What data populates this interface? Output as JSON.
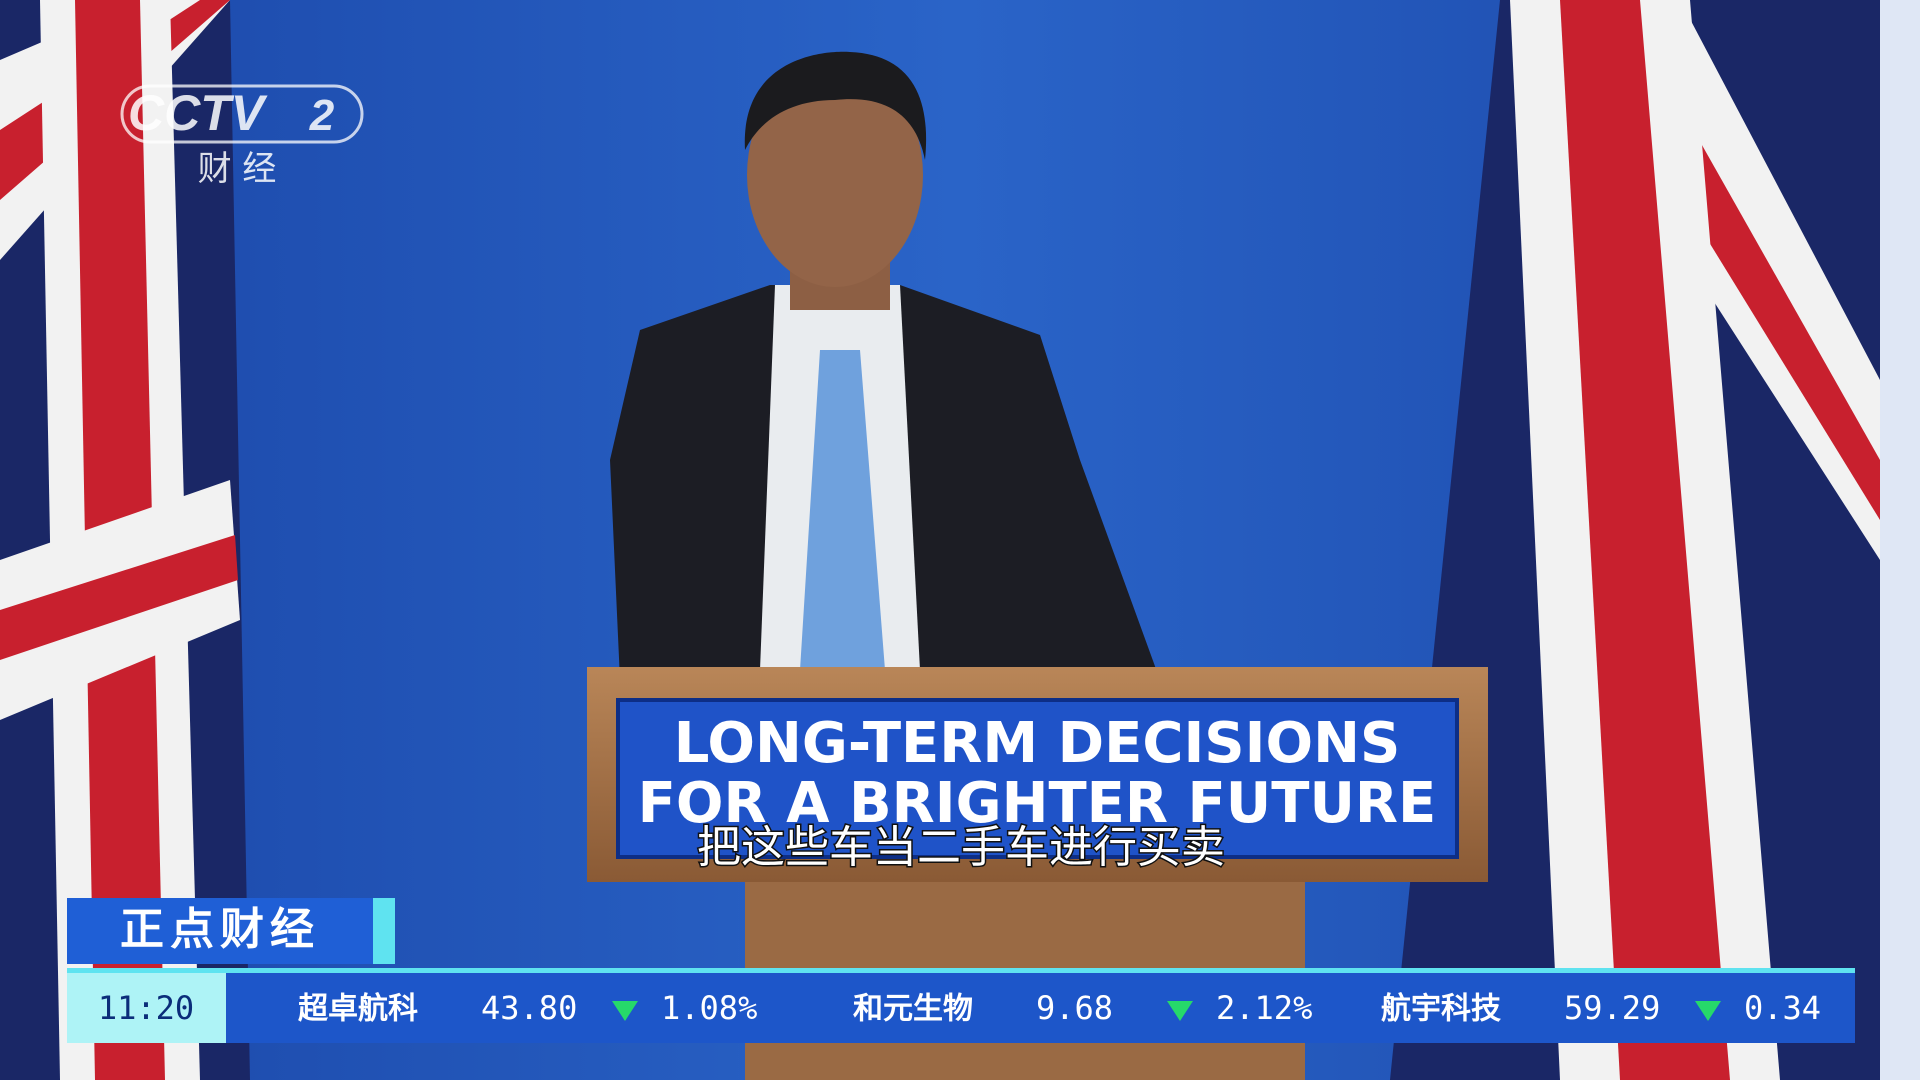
{
  "logo": {
    "brand": "CCTV",
    "channel": "2",
    "channel_name": "财 经"
  },
  "podium": {
    "line1": "LONG-TERM DECISIONS",
    "line2": "FOR A BRIGHTER FUTURE"
  },
  "subtitle": "把这些车当二手车进行买卖",
  "program": "正点财经",
  "ticker": {
    "time": "11:20",
    "items": [
      {
        "name": "超卓航科",
        "price": "43.80",
        "change": "1.08%"
      },
      {
        "name": "和元生物",
        "price": "9.68",
        "change": "2.12%"
      },
      {
        "name": "航宇科技",
        "price": "59.29",
        "change": "0.34"
      }
    ]
  }
}
